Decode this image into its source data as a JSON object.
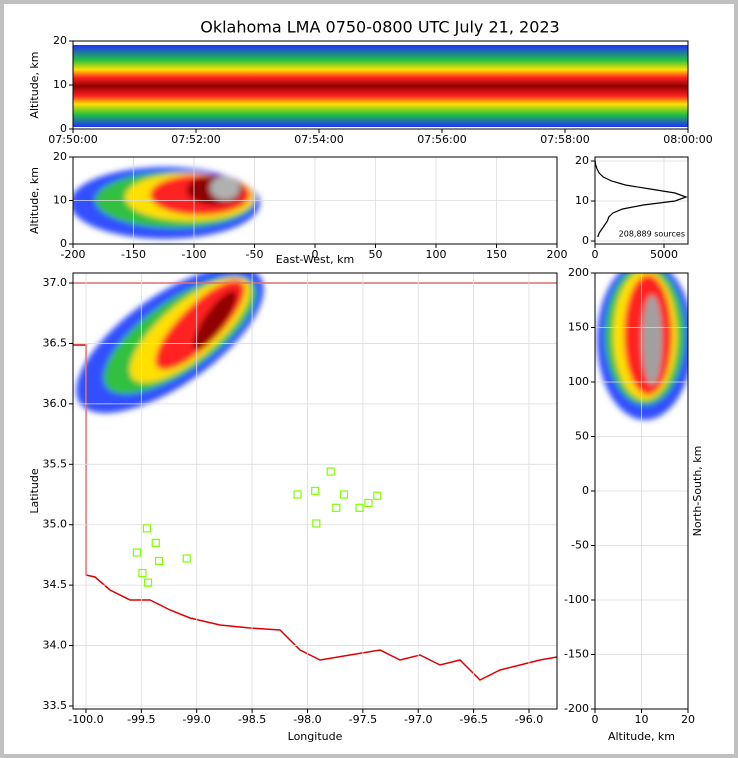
{
  "chart_data": [
    {
      "type": "density",
      "title": "Oklahoma LMA 0750-0800 UTC July 21, 2023",
      "ylabel": "Altitude, km",
      "xlim": [
        0,
        10
      ],
      "xticks": [
        {
          "value": 0,
          "label": "07:50:00"
        },
        {
          "value": 2,
          "label": "07:52:00"
        },
        {
          "value": 4,
          "label": "07:54:00"
        },
        {
          "value": 6,
          "label": "07:56:00"
        },
        {
          "value": 8,
          "label": "07:58:00"
        },
        {
          "value": 10,
          "label": "08:00:00"
        }
      ],
      "ylim": [
        0,
        20
      ],
      "yticks": [
        0,
        10,
        20
      ],
      "grid": false
    },
    {
      "type": "density",
      "xlabel": "East-West, km",
      "ylabel": "Altitude, km",
      "xlim": [
        -200,
        200
      ],
      "xticks": [
        -200,
        -150,
        -100,
        -50,
        0,
        50,
        100,
        150,
        200
      ],
      "ylim": [
        0,
        20
      ],
      "yticks": [
        0,
        10,
        20
      ],
      "grid": true
    },
    {
      "type": "line",
      "annotation": "208,889 sources",
      "x": [
        200,
        300,
        500,
        700,
        900,
        1000,
        1300,
        2000,
        3500,
        5800,
        6600,
        5800,
        4000,
        2200,
        1200,
        600,
        300,
        150,
        50,
        10
      ],
      "y": [
        1,
        2,
        3,
        4,
        5,
        6,
        7,
        8,
        9,
        10,
        11,
        12,
        13,
        14,
        15,
        16,
        17,
        18,
        19,
        20
      ],
      "color": "#000000",
      "xlim": [
        0,
        6740
      ],
      "xticks": [
        0,
        5000
      ],
      "ylim": [
        -0.75,
        21
      ],
      "yticks": [
        0,
        10,
        20
      ],
      "grid": true
    },
    {
      "type": "scatter",
      "xlabel": "Longitude",
      "ylabel": "Latitude",
      "color": "#7fff00",
      "x": [
        -99.45,
        -99.37,
        -99.54,
        -99.34,
        -99.09,
        -99.49,
        -99.44,
        -98.09,
        -97.93,
        -97.79,
        -97.67,
        -97.74,
        -97.92,
        -97.53,
        -97.45,
        -97.37
      ],
      "y": [
        34.97,
        34.85,
        34.77,
        34.7,
        34.72,
        34.6,
        34.52,
        35.25,
        35.28,
        35.44,
        35.25,
        35.14,
        35.01,
        35.14,
        35.18,
        35.24
      ],
      "xlim": [
        -100.117,
        -95.747
      ],
      "xticks": [
        {
          "value": -100,
          "label": "-100.0"
        },
        -99.5,
        {
          "value": -99,
          "label": "-99.0"
        },
        -98.5,
        {
          "value": -98,
          "label": "-98.0"
        },
        -97.5,
        {
          "value": -97,
          "label": "-97.0"
        },
        -96.5,
        {
          "value": -96,
          "label": "-96.0"
        }
      ],
      "ylim": [
        33.475,
        37.083
      ],
      "yticks": [
        33.5,
        {
          "value": 34,
          "label": "34.0"
        },
        34.5,
        {
          "value": 35,
          "label": "35.0"
        },
        35.5,
        {
          "value": 36,
          "label": "36.0"
        },
        36.5,
        {
          "value": 37,
          "label": "37.0"
        }
      ],
      "grid": true
    },
    {
      "type": "density",
      "xlabel": "Altitude, km",
      "ylabel": "North-South, km",
      "xlim": [
        0,
        20
      ],
      "xticks": [
        0,
        10,
        20
      ],
      "ylim": [
        -200,
        200
      ],
      "yticks": [
        -200,
        -150,
        -100,
        -50,
        0,
        50,
        100,
        150,
        200
      ],
      "grid": true
    }
  ]
}
